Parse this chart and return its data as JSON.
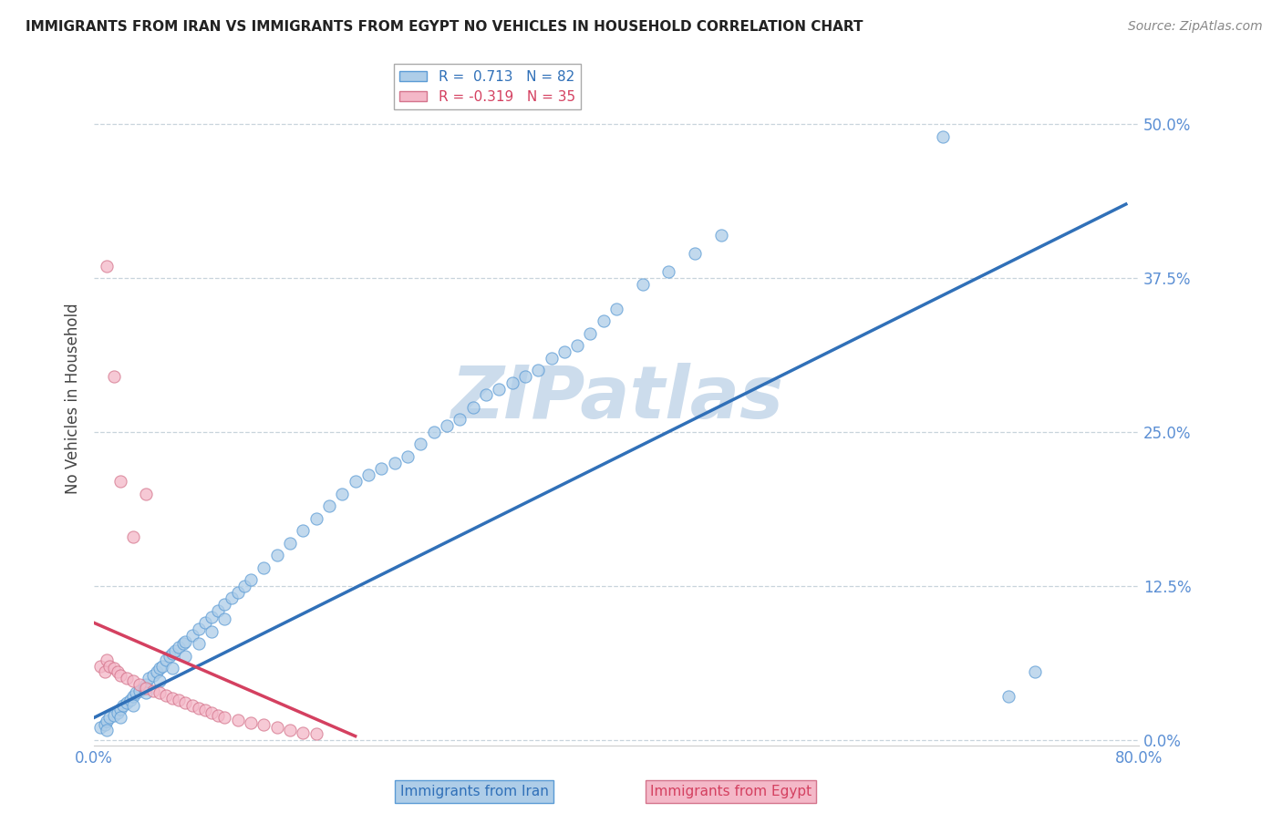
{
  "title": "IMMIGRANTS FROM IRAN VS IMMIGRANTS FROM EGYPT NO VEHICLES IN HOUSEHOLD CORRELATION CHART",
  "source": "Source: ZipAtlas.com",
  "ylabel": "No Vehicles in Household",
  "xlim": [
    0.0,
    0.8
  ],
  "ylim": [
    -0.005,
    0.56
  ],
  "ytick_vals": [
    0.0,
    0.125,
    0.25,
    0.375,
    0.5
  ],
  "ytick_labels": [
    "0.0%",
    "12.5%",
    "25.0%",
    "37.5%",
    "50.0%"
  ],
  "xtick_vals": [
    0.0,
    0.8
  ],
  "xtick_labels": [
    "0.0%",
    "80.0%"
  ],
  "iran_color": "#aecde8",
  "iran_edge": "#5b9bd5",
  "egypt_color": "#f4b8c8",
  "egypt_edge": "#d4748c",
  "iran_line_color": "#3070b8",
  "egypt_line_color": "#d44060",
  "watermark": "ZIPatlas",
  "watermark_color": "#ccdcec",
  "background_color": "#ffffff",
  "grid_color": "#c8d4dc",
  "tick_color": "#5b8fd4",
  "legend_label_iran": "R =  0.713   N = 82",
  "legend_label_egypt": "R = -0.319   N = 35",
  "legend_text_color_iran": "#3070b8",
  "legend_text_color_egypt": "#d44060",
  "bottom_label_iran": "Immigrants from Iran",
  "bottom_label_egypt": "Immigrants from Egypt",
  "iran_x": [
    0.005,
    0.008,
    0.01,
    0.012,
    0.015,
    0.018,
    0.02,
    0.022,
    0.025,
    0.028,
    0.03,
    0.032,
    0.035,
    0.038,
    0.04,
    0.042,
    0.045,
    0.048,
    0.05,
    0.052,
    0.055,
    0.058,
    0.06,
    0.062,
    0.065,
    0.068,
    0.07,
    0.075,
    0.08,
    0.085,
    0.09,
    0.095,
    0.1,
    0.105,
    0.11,
    0.115,
    0.12,
    0.13,
    0.14,
    0.15,
    0.16,
    0.17,
    0.18,
    0.19,
    0.2,
    0.21,
    0.22,
    0.23,
    0.24,
    0.25,
    0.26,
    0.27,
    0.28,
    0.29,
    0.3,
    0.31,
    0.32,
    0.33,
    0.34,
    0.35,
    0.36,
    0.37,
    0.38,
    0.39,
    0.4,
    0.42,
    0.44,
    0.46,
    0.48,
    0.01,
    0.02,
    0.03,
    0.04,
    0.05,
    0.06,
    0.07,
    0.08,
    0.09,
    0.1,
    0.65,
    0.7,
    0.72
  ],
  "iran_y": [
    0.01,
    0.012,
    0.015,
    0.018,
    0.02,
    0.022,
    0.025,
    0.028,
    0.03,
    0.032,
    0.035,
    0.038,
    0.04,
    0.042,
    0.045,
    0.05,
    0.052,
    0.055,
    0.058,
    0.06,
    0.065,
    0.068,
    0.07,
    0.072,
    0.075,
    0.078,
    0.08,
    0.085,
    0.09,
    0.095,
    0.1,
    0.105,
    0.11,
    0.115,
    0.12,
    0.125,
    0.13,
    0.14,
    0.15,
    0.16,
    0.17,
    0.18,
    0.19,
    0.2,
    0.21,
    0.215,
    0.22,
    0.225,
    0.23,
    0.24,
    0.25,
    0.255,
    0.26,
    0.27,
    0.28,
    0.285,
    0.29,
    0.295,
    0.3,
    0.31,
    0.315,
    0.32,
    0.33,
    0.34,
    0.35,
    0.37,
    0.38,
    0.395,
    0.41,
    0.008,
    0.018,
    0.028,
    0.038,
    0.048,
    0.058,
    0.068,
    0.078,
    0.088,
    0.098,
    0.49,
    0.035,
    0.055
  ],
  "egypt_x": [
    0.005,
    0.008,
    0.01,
    0.012,
    0.015,
    0.018,
    0.02,
    0.025,
    0.03,
    0.035,
    0.04,
    0.045,
    0.05,
    0.055,
    0.06,
    0.065,
    0.07,
    0.075,
    0.08,
    0.085,
    0.09,
    0.095,
    0.1,
    0.11,
    0.12,
    0.13,
    0.14,
    0.15,
    0.16,
    0.17,
    0.01,
    0.015,
    0.02,
    0.03,
    0.04
  ],
  "egypt_y": [
    0.06,
    0.055,
    0.065,
    0.06,
    0.058,
    0.055,
    0.052,
    0.05,
    0.048,
    0.045,
    0.042,
    0.04,
    0.038,
    0.036,
    0.034,
    0.032,
    0.03,
    0.028,
    0.026,
    0.024,
    0.022,
    0.02,
    0.018,
    0.016,
    0.014,
    0.012,
    0.01,
    0.008,
    0.006,
    0.005,
    0.385,
    0.295,
    0.21,
    0.165,
    0.2
  ]
}
